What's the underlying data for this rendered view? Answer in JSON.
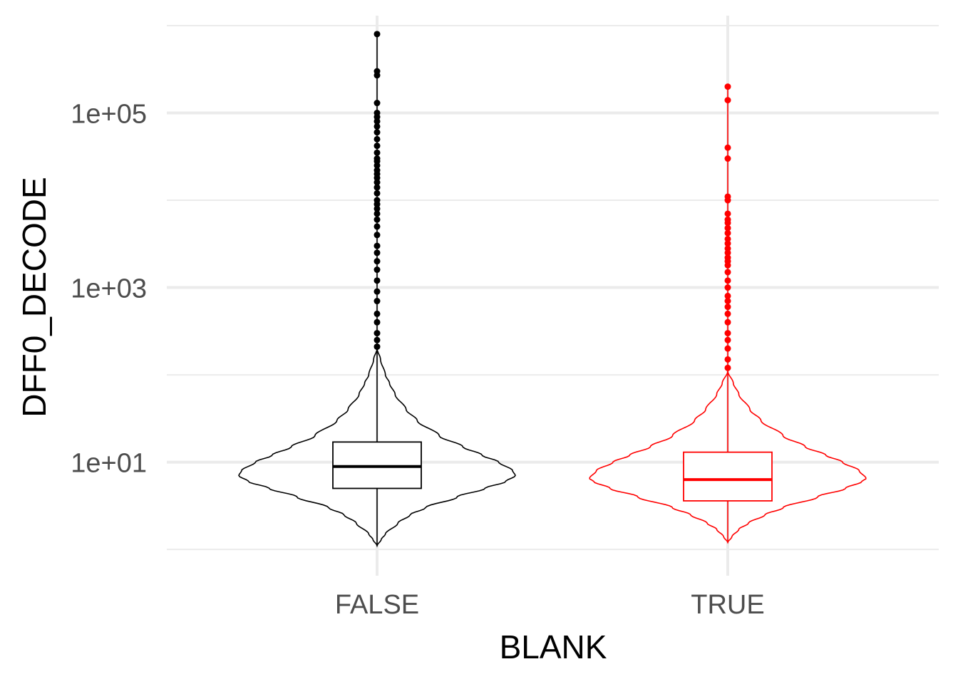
{
  "chart_data": {
    "type": "violin",
    "xlabel": "BLANK",
    "ylabel": "DFF0_DECODE",
    "y_scale": "log10",
    "ylim": [
      0.5,
      1300000
    ],
    "y_ticks": [
      {
        "value": 10,
        "label": "1e+01"
      },
      {
        "value": 1000,
        "label": "1e+03"
      },
      {
        "value": 100000,
        "label": "1e+05"
      }
    ],
    "y_minor_ticks": [
      1,
      100,
      10000,
      1000000
    ],
    "grid": true,
    "categories": [
      "FALSE",
      "TRUE"
    ],
    "series": [
      {
        "category": "FALSE",
        "color": "#000000",
        "box": {
          "q1": 5,
          "median": 8.9,
          "q3": 17,
          "whisker_low": 1.1,
          "whisker_high": 200
        },
        "violin_range": [
          1.1,
          200
        ],
        "violin_profile": [
          [
            1.1,
            0.0
          ],
          [
            1.3,
            0.03
          ],
          [
            1.5,
            0.06
          ],
          [
            2,
            0.15
          ],
          [
            2.5,
            0.24
          ],
          [
            3,
            0.35
          ],
          [
            4,
            0.58
          ],
          [
            5,
            0.78
          ],
          [
            6,
            0.93
          ],
          [
            7,
            1.0
          ],
          [
            8,
            0.98
          ],
          [
            10,
            0.88
          ],
          [
            12,
            0.76
          ],
          [
            15,
            0.62
          ],
          [
            20,
            0.45
          ],
          [
            30,
            0.29
          ],
          [
            40,
            0.21
          ],
          [
            60,
            0.13
          ],
          [
            80,
            0.09
          ],
          [
            100,
            0.06
          ],
          [
            150,
            0.025
          ],
          [
            200,
            0.0
          ]
        ],
        "outliers_max": 800000,
        "outliers": [
          210,
          250,
          300,
          400,
          500,
          700,
          900,
          1200,
          1600,
          2000,
          2500,
          3000,
          4000,
          5000,
          6000,
          7000,
          8000,
          9000,
          10000,
          12000,
          14000,
          16000,
          18000,
          20000,
          22000,
          25000,
          28000,
          30000,
          35000,
          42000,
          50000,
          60000,
          70000,
          80000,
          90000,
          100000,
          130000,
          270000,
          300000,
          800000
        ]
      },
      {
        "category": "TRUE",
        "color": "#ff0000",
        "box": {
          "q1": 3.6,
          "median": 6.3,
          "q3": 13,
          "whisker_low": 1.2,
          "whisker_high": 110
        },
        "violin_range": [
          1.2,
          110
        ],
        "violin_profile": [
          [
            1.2,
            0.0
          ],
          [
            1.4,
            0.03
          ],
          [
            1.7,
            0.08
          ],
          [
            2,
            0.15
          ],
          [
            2.5,
            0.27
          ],
          [
            3,
            0.4
          ],
          [
            4,
            0.65
          ],
          [
            5,
            0.85
          ],
          [
            6,
            0.97
          ],
          [
            6.5,
            1.0
          ],
          [
            8,
            0.95
          ],
          [
            10,
            0.83
          ],
          [
            12,
            0.71
          ],
          [
            15,
            0.56
          ],
          [
            20,
            0.4
          ],
          [
            30,
            0.24
          ],
          [
            40,
            0.16
          ],
          [
            60,
            0.08
          ],
          [
            80,
            0.04
          ],
          [
            110,
            0.0
          ]
        ],
        "outliers_max": 200000,
        "outliers": [
          120,
          150,
          200,
          250,
          300,
          400,
          500,
          600,
          700,
          800,
          1000,
          1200,
          1500,
          1800,
          2000,
          2200,
          2500,
          2800,
          3200,
          3600,
          4200,
          4800,
          5500,
          6000,
          7000,
          10000,
          11000,
          30000,
          40000,
          140000,
          200000
        ]
      }
    ]
  }
}
